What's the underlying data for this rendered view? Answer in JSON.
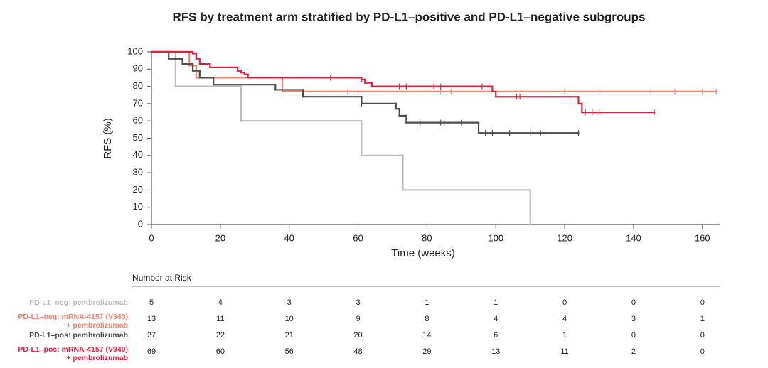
{
  "chart_data": {
    "type": "kaplan-meier",
    "title": "RFS by treatment arm stratified by PD-L1–positive and PD-L1–negative subgroups",
    "x_label": "Time (weeks)",
    "y_label": "RFS (%)",
    "xlim": [
      0,
      165
    ],
    "ylim": [
      0,
      100
    ],
    "xticks": [
      0,
      20,
      40,
      60,
      80,
      100,
      120,
      140,
      160
    ],
    "yticks": [
      0,
      10,
      20,
      30,
      40,
      50,
      60,
      70,
      80,
      90,
      100
    ],
    "series": [
      {
        "color": "#bdbdbd",
        "x": [
          0,
          7,
          26,
          61,
          73,
          110
        ],
        "values": [
          100,
          80,
          60,
          40,
          20,
          0
        ],
        "censored_x": [],
        "censored_values": []
      },
      {
        "color": "#f08272",
        "x": [
          0,
          11,
          13,
          38,
          164
        ],
        "values": [
          100,
          92,
          85,
          77,
          77
        ],
        "censored_x": [
          57,
          60,
          84,
          87,
          120,
          130,
          145,
          152,
          160,
          164
        ],
        "censored_values": [
          77,
          77,
          77,
          77,
          77,
          77,
          77,
          77,
          77,
          77
        ]
      },
      {
        "color": "#4d4d4d",
        "x": [
          0,
          5,
          9,
          12,
          14,
          18,
          36,
          44,
          61,
          71,
          72,
          74,
          95,
          124
        ],
        "values": [
          100,
          96,
          93,
          89,
          85,
          81,
          78,
          74,
          70,
          67,
          63,
          59,
          53,
          53
        ],
        "censored_x": [
          61,
          78,
          84,
          85,
          90,
          97,
          99,
          104,
          110,
          113,
          124
        ],
        "censored_values": [
          70,
          59,
          59,
          59,
          59,
          53,
          53,
          53,
          53,
          53,
          53
        ]
      },
      {
        "color": "#e3203f",
        "x": [
          0,
          12,
          13,
          14,
          17,
          25,
          26,
          27,
          28,
          61,
          62,
          64,
          99,
          100,
          124,
          125,
          146
        ],
        "values": [
          100,
          99,
          96,
          93,
          91,
          89,
          88,
          87,
          85,
          84,
          82,
          80,
          77,
          74,
          70,
          65,
          65
        ],
        "censored_x": [
          52,
          61,
          72,
          74,
          82,
          84,
          96,
          98,
          106,
          107,
          126,
          128,
          130,
          146
        ],
        "censored_values": [
          85,
          84,
          80,
          80,
          80,
          80,
          80,
          80,
          74,
          74,
          65,
          65,
          65,
          65
        ]
      }
    ],
    "risk_table": {
      "title": "Number at Risk",
      "times": [
        0,
        20,
        40,
        60,
        80,
        100,
        120,
        140,
        160
      ],
      "rows": [
        {
          "label": [
            "PD-L1–neg: pembrolizumab"
          ],
          "values": [
            5,
            4,
            3,
            3,
            1,
            1,
            0,
            0,
            0
          ]
        },
        {
          "label": [
            "PD-L1–neg: mRNA-4157 (V940)",
            "+ pembrolizumab"
          ],
          "values": [
            13,
            11,
            10,
            9,
            8,
            4,
            4,
            3,
            1
          ]
        },
        {
          "label": [
            "PD-L1–pos: pembrolizumab"
          ],
          "values": [
            27,
            22,
            21,
            20,
            14,
            6,
            1,
            0,
            0
          ]
        },
        {
          "label": [
            "PD-L1–pos: mRNA-4157 (V940)",
            "+ pembrolizumab"
          ],
          "values": [
            69,
            60,
            56,
            48,
            29,
            13,
            11,
            2,
            0
          ]
        }
      ]
    }
  }
}
